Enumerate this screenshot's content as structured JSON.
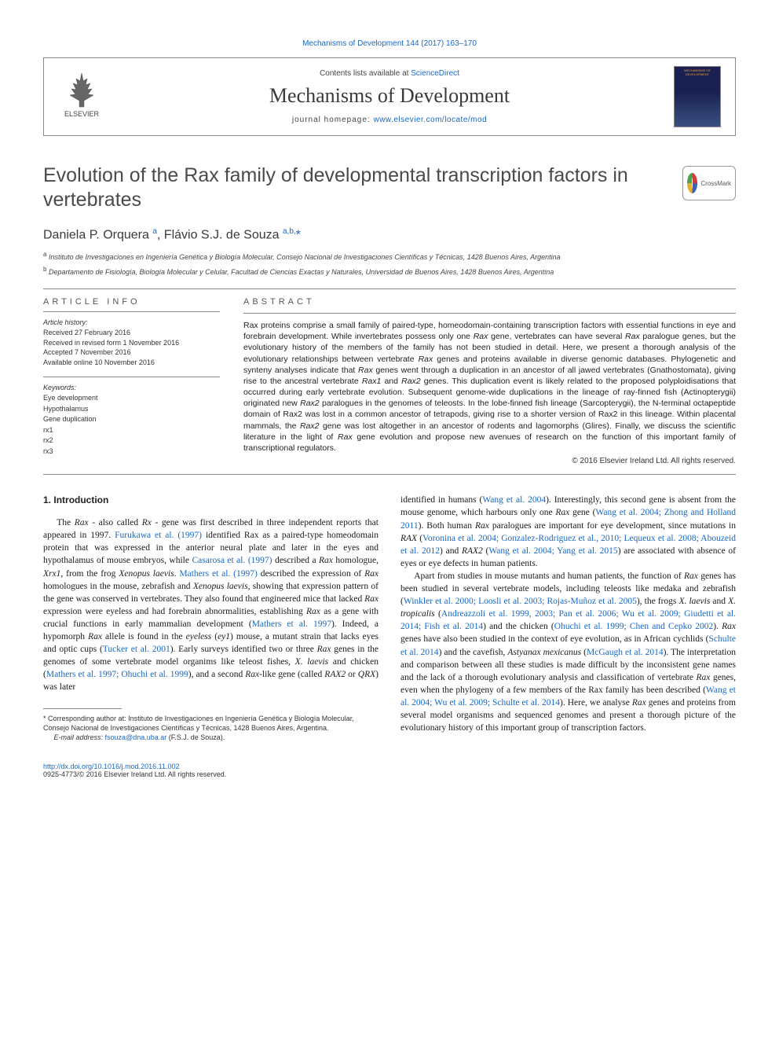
{
  "header": {
    "top_link": "Mechanisms of Development 144 (2017) 163–170",
    "contents_prefix": "Contents lists available at ",
    "contents_link": "ScienceDirect",
    "journal_name": "Mechanisms of Development",
    "homepage_prefix": "journal homepage: ",
    "homepage_url": "www.elsevier.com/locate/mod",
    "elsevier_label": "ELSEVIER",
    "cover_label": "MECHANISMS OF DEVELOPMENT"
  },
  "title": "Evolution of the Rax family of developmental transcription factors in vertebrates",
  "crossmark_label": "CrossMark",
  "authors_html": "Daniela P. Orquera <sup>a</sup>, Flávio S.J. de Souza <sup>a,b,</sup><span class='star'>*</span>",
  "affiliations": [
    {
      "sup": "a",
      "text": "Instituto de Investigaciones en Ingeniería Genética y Biología Molecular, Consejo Nacional de Investigaciones Científicas y Técnicas, 1428 Buenos Aires, Argentina"
    },
    {
      "sup": "b",
      "text": "Departamento de Fisiología, Biología Molecular y Celular, Facultad de Ciencias Exactas y Naturales, Universidad de Buenos Aires, 1428 Buenos Aires, Argentina"
    }
  ],
  "info": {
    "header": "article info",
    "history_label": "Article history:",
    "history": [
      "Received 27 February 2016",
      "Received in revised form 1 November 2016",
      "Accepted 7 November 2016",
      "Available online 10 November 2016"
    ],
    "keywords_label": "Keywords:",
    "keywords": [
      "Eye development",
      "Hypothalamus",
      "Gene duplication",
      "rx1",
      "rx2",
      "rx3"
    ]
  },
  "abstract": {
    "header": "abstract",
    "text_html": "Rax proteins comprise a small family of paired-type, homeodomain-containing transcription factors with essential functions in eye and forebrain development. While invertebrates possess only one <em>Rax</em> gene, vertebrates can have several <em>Rax</em> paralogue genes, but the evolutionary history of the members of the family has not been studied in detail. Here, we present a thorough analysis of the evolutionary relationships between vertebrate <em>Rax</em> genes and proteins available in diverse genomic databases. Phylogenetic and synteny analyses indicate that <em>Rax</em> genes went through a duplication in an ancestor of all jawed vertebrates (Gnathostomata), giving rise to the ancestral vertebrate <em>Rax1</em> and <em>Rax2</em> genes. This duplication event is likely related to the proposed polyploidisations that occurred during early vertebrate evolution. Subsequent genome-wide duplications in the lineage of ray-finned fish (Actinopterygii) originated new <em>Rax2</em> paralogues in the genomes of teleosts. In the lobe-finned fish lineage (Sarcopterygii), the N-terminal octapeptide domain of Rax2 was lost in a common ancestor of tetrapods, giving rise to a shorter version of Rax2 in this lineage. Within placental mammals, the <em>Rax2</em> gene was lost altogether in an ancestor of rodents and lagomorphs (Glires). Finally, we discuss the scientific literature in the light of <em>Rax</em> gene evolution and propose new avenues of research on the function of this important family of transcriptional regulators.",
    "copyright": "© 2016 Elsevier Ireland Ltd. All rights reserved."
  },
  "body": {
    "section_number": "1.",
    "section_title": "Introduction",
    "col1_html": "The <em>Rax</em> - also called <em>Rx</em> - gene was first described in three independent reports that appeared in 1997. <a>Furukawa et al. (1997)</a> identified Rax as a paired-type homeodomain protein that was expressed in the anterior neural plate and later in the eyes and hypothalamus of mouse embryos, while <a>Casarosa et al. (1997)</a> described a <em>Rax</em> homologue, <em>Xrx1</em>, from the frog <em>Xenopus laevis</em>. <a>Mathers et al. (1997)</a> described the expression of <em>Rax</em> homologues in the mouse, zebrafish and <em>Xenopus laevis</em>, showing that expression pattern of the gene was conserved in vertebrates. They also found that engineered mice that lacked <em>Rax</em> expression were eyeless and had forebrain abnormalities, establishing <em>Rax</em> as a gene with crucial functions in early mammalian development (<a>Mathers et al. 1997</a>). Indeed, a hypomorph <em>Rax</em> allele is found in the <em>eyeless</em> (<em>ey1</em>) mouse, a mutant strain that lacks eyes and optic cups (<a>Tucker et al. 2001</a>). Early surveys identified two or three <em>Rax</em> genes in the genomes of some vertebrate model organims like teleost fishes, <em>X. laevis</em> and chicken (<a>Mathers et al. 1997; Ohuchi et al. 1999</a>), and a second <em>Rax</em>-like gene (called <em>RAX2</em> or <em>QRX</em>) was later",
    "col2_p1_html": "identified in humans (<a>Wang et al. 2004</a>). Interestingly, this second gene is absent from the mouse genome, which harbours only one <em>Rax</em> gene (<a>Wang et al. 2004; Zhong and Holland 2011</a>). Both human <em>Rax</em> paralogues are important for eye development, since mutations in <em>RAX</em> (<a>Voronina et al. 2004; Gonzalez-Rodriguez et al., 2010; Lequeux et al. 2008; Abouzeid et al. 2012</a>) and <em>RAX2</em> (<a>Wang et al. 2004; Yang et al. 2015</a>) are associated with absence of eyes or eye defects in human patients.",
    "col2_p2_html": "Apart from studies in mouse mutants and human patients, the function of <em>Rax</em> genes has been studied in several vertebrate models, including teleosts like medaka and zebrafish (<a>Winkler et al. 2000; Loosli et al. 2003; Rojas-Muñoz et al. 2005</a>), the frogs <em>X. laevis</em> and <em>X. tropicalis</em> (<a>Andreazzoli et al. 1999, 2003; Pan et al. 2006; Wu et al. 2009; Giudetti et al. 2014; Fish et al. 2014</a>) and the chicken (<a>Ohuchi et al. 1999; Chen and Cepko 2002</a>). <em>Rax</em> genes have also been studied in the context of eye evolution, as in African cychlids (<a>Schulte et al. 2014</a>) and the cavefish, <em>Astyanax mexicanus</em> (<a>McGaugh et al. 2014</a>). The interpretation and comparison between all these studies is made difficult by the inconsistent gene names and the lack of a thorough evolutionary analysis and classification of vertebrate <em>Rax</em> genes, even when the phylogeny of a few members of the Rax family has been described (<a>Wang et al. 2004; Wu et al. 2009; Schulte et al. 2014</a>). Here, we analyse <em>Rax</em> genes and proteins from several model organisms and sequenced genomes and present a thorough picture of the evolutionary history of this important group of transcription factors."
  },
  "footnote": {
    "corr_html": "* Corresponding author at: Instituto de Investigaciones en Ingeniería Genética y Biología Molecular, Consejo Nacional de Investigaciones Científicas y Técnicas, 1428 Buenos Aires, Argentina.",
    "email_label": "E-mail address:",
    "email": "fsouza@dna.uba.ar",
    "email_name": "(F.S.J. de Souza)."
  },
  "footer": {
    "doi": "http://dx.doi.org/10.1016/j.mod.2016.11.002",
    "issn_line": "0925-4773/© 2016 Elsevier Ireland Ltd. All rights reserved."
  },
  "colors": {
    "link": "#1968c4",
    "text": "#000000",
    "heading": "#4a4a4a",
    "rule": "#888888"
  }
}
